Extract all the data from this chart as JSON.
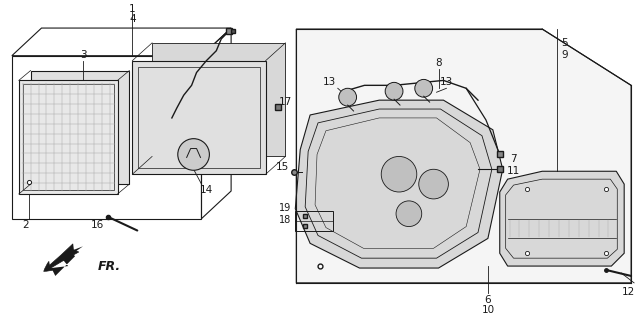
{
  "bg_color": "#ffffff",
  "line_color": "#1a1a1a",
  "fig_width": 6.4,
  "fig_height": 3.17,
  "dpi": 100
}
